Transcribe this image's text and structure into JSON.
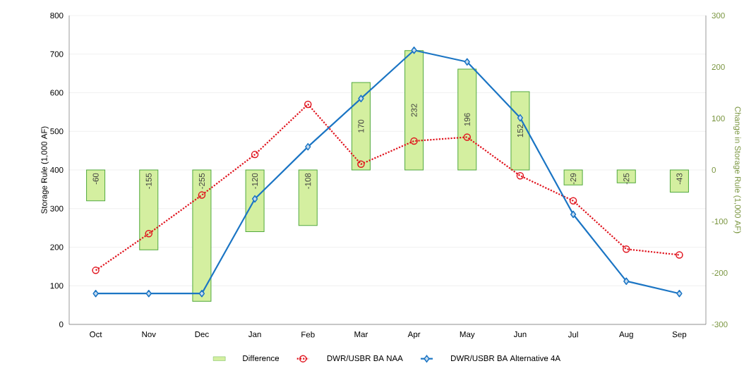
{
  "chart_data": {
    "type": "line",
    "ylabel": "Storage Rule (1,000 AF)",
    "y2label": "Change in Storage Rule (1,000 AF)",
    "categories": [
      "Oct",
      "Nov",
      "Dec",
      "Jan",
      "Feb",
      "Mar",
      "Apr",
      "May",
      "Jun",
      "Jul",
      "Aug",
      "Sep"
    ],
    "ylim": [
      0,
      800
    ],
    "yticks": [
      0,
      100,
      200,
      300,
      400,
      500,
      600,
      700,
      800
    ],
    "y2lim": [
      -300,
      300
    ],
    "y2ticks": [
      -300,
      -200,
      -100,
      0,
      100,
      200,
      300
    ],
    "grid": "y",
    "legend": "bottom",
    "series": [
      {
        "name": "Difference",
        "type": "bar",
        "axis": "y2",
        "color": "#d4efa0",
        "values": [
          -60,
          -155,
          -255,
          -120,
          -108,
          170,
          232,
          196,
          152,
          -29,
          -25,
          -43
        ],
        "value_labels": [
          "-60",
          "-155",
          "-255",
          "-120",
          "-108",
          "170",
          "232",
          "196",
          "152",
          "-29",
          "-25",
          "-43"
        ]
      },
      {
        "name": "DWR/USBR BA NAA",
        "color": "#e0141e",
        "marker": "circle",
        "line_style": "dotted",
        "values": [
          140,
          235,
          335,
          440,
          570,
          415,
          475,
          485,
          385,
          320,
          195,
          180
        ]
      },
      {
        "name": "DWR/USBR BA Alternative 4A",
        "color": "#1b75c4",
        "marker": "diamond",
        "line_style": "solid",
        "values": [
          80,
          80,
          80,
          325,
          460,
          585,
          710,
          680,
          535,
          285,
          112,
          80
        ]
      }
    ]
  }
}
